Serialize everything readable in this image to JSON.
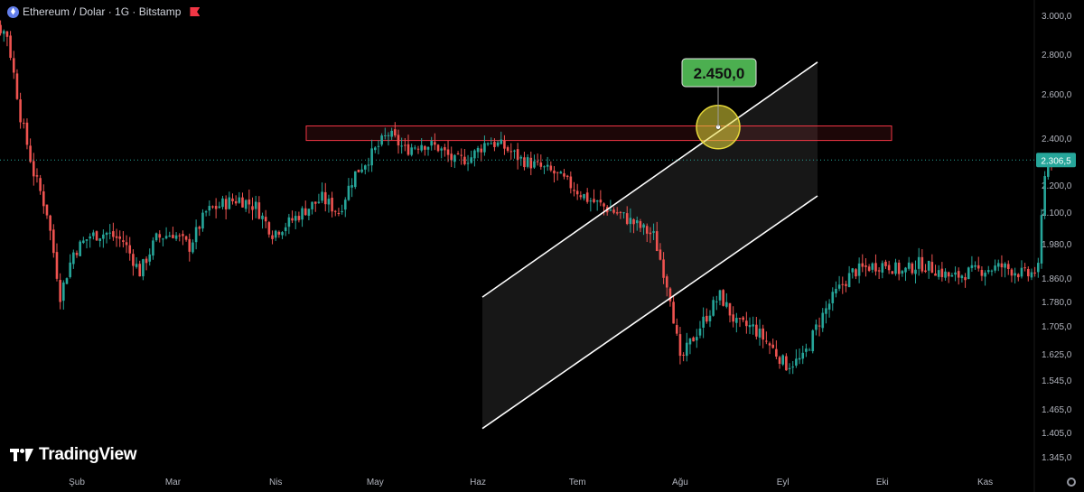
{
  "header": {
    "symbol": "Ethereum",
    "pair_details": "/ Dolar · 1G · Bitstamp",
    "icons": [
      "ethereum-icon",
      "flag-icon"
    ]
  },
  "branding": {
    "logo_text": "TradingView"
  },
  "colors": {
    "up": "#26a69a",
    "down": "#ef5350",
    "bg": "#000000",
    "callout_green": "#4caf50",
    "target_circle": "#e6d83a",
    "zone_border": "#f23645"
  },
  "chart_data": {
    "type": "candlestick",
    "title": "Ethereum / Dolar · 1G · Bitstamp",
    "ylim": [
      1300,
      3080
    ],
    "y_ticks": [
      {
        "value": 3000,
        "label": "3.000,0"
      },
      {
        "value": 2800,
        "label": "2.800,0"
      },
      {
        "value": 2600,
        "label": "2.600,0"
      },
      {
        "value": 2400,
        "label": "2.400,0"
      },
      {
        "value": 2200,
        "label": "2.200,0"
      },
      {
        "value": 2100,
        "label": "2.100,0"
      },
      {
        "value": 1980,
        "label": "1.980,0"
      },
      {
        "value": 1860,
        "label": "1.860,0"
      },
      {
        "value": 1780,
        "label": "1.780,0"
      },
      {
        "value": 1705,
        "label": "1.705,0"
      },
      {
        "value": 1625,
        "label": "1.625,0"
      },
      {
        "value": 1545,
        "label": "1.545,0"
      },
      {
        "value": 1465,
        "label": "1.465,0"
      },
      {
        "value": 1405,
        "label": "1.405,0"
      },
      {
        "value": 1345,
        "label": "1.345,0"
      }
    ],
    "x_ticks": [
      "Şub",
      "Mar",
      "Nis",
      "May",
      "Haz",
      "Tem",
      "Ağu",
      "Eyl",
      "Eki",
      "Kas"
    ],
    "current_price": {
      "value": 2306.5,
      "label": "2.306,5"
    },
    "callout": {
      "value": 2450.0,
      "label": "2.450,0"
    },
    "resistance_zone": [
      2390,
      2455
    ],
    "channel": {
      "upper": [
        {
          "date": "Haz",
          "price": 1795
        },
        {
          "date": "Eyl+",
          "price": 2760
        }
      ],
      "lower": [
        {
          "date": "Haz",
          "price": 1415
        },
        {
          "date": "Eyl+",
          "price": 2160
        }
      ]
    },
    "anchors": [
      [
        0,
        3010
      ],
      [
        5,
        2980
      ],
      [
        10,
        2900
      ],
      [
        14,
        2500
      ],
      [
        18,
        2250
      ],
      [
        22,
        2100
      ],
      [
        26,
        1800
      ],
      [
        30,
        1950
      ],
      [
        35,
        2010
      ],
      [
        40,
        2020
      ],
      [
        45,
        1990
      ],
      [
        50,
        1880
      ],
      [
        55,
        2000
      ],
      [
        60,
        2020
      ],
      [
        65,
        1970
      ],
      [
        70,
        2100
      ],
      [
        75,
        2130
      ],
      [
        80,
        2150
      ],
      [
        85,
        2120
      ],
      [
        90,
        2020
      ],
      [
        95,
        2060
      ],
      [
        100,
        2110
      ],
      [
        105,
        2150
      ],
      [
        110,
        2100
      ],
      [
        115,
        2250
      ],
      [
        120,
        2330
      ],
      [
        125,
        2420
      ],
      [
        130,
        2350
      ],
      [
        135,
        2380
      ],
      [
        140,
        2360
      ],
      [
        145,
        2300
      ],
      [
        150,
        2320
      ],
      [
        155,
        2390
      ],
      [
        160,
        2360
      ],
      [
        165,
        2310
      ],
      [
        170,
        2280
      ],
      [
        175,
        2250
      ],
      [
        180,
        2200
      ],
      [
        185,
        2150
      ],
      [
        190,
        2120
      ],
      [
        195,
        2090
      ],
      [
        200,
        2050
      ],
      [
        205,
        2010
      ],
      [
        210,
        1800
      ],
      [
        213,
        1600
      ],
      [
        216,
        1655
      ],
      [
        220,
        1720
      ],
      [
        225,
        1800
      ],
      [
        230,
        1710
      ],
      [
        235,
        1700
      ],
      [
        240,
        1650
      ],
      [
        245,
        1590
      ],
      [
        250,
        1610
      ],
      [
        255,
        1720
      ],
      [
        260,
        1810
      ],
      [
        265,
        1880
      ],
      [
        270,
        1900
      ],
      [
        275,
        1910
      ],
      [
        280,
        1880
      ],
      [
        285,
        1910
      ],
      [
        290,
        1890
      ],
      [
        295,
        1860
      ],
      [
        300,
        1880
      ],
      [
        305,
        1890
      ],
      [
        310,
        1900
      ],
      [
        315,
        1880
      ],
      [
        318,
        1870
      ],
      [
        321,
        1890
      ],
      [
        323,
        2260
      ],
      [
        325,
        2306.5
      ]
    ],
    "start_date": "2024-01-01",
    "grid": false,
    "legend": "none"
  }
}
